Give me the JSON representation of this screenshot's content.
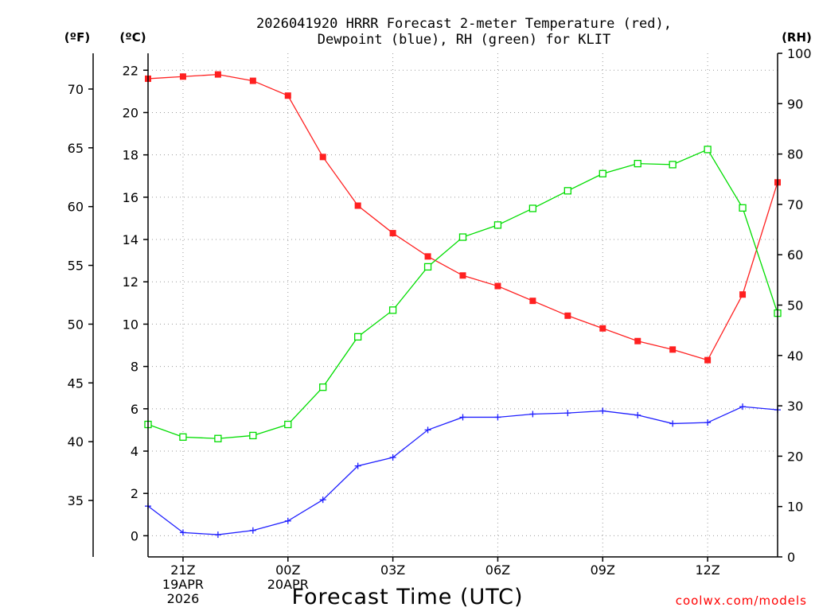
{
  "chart_data": {
    "type": "line",
    "title_line1": "2026041920 HRRR Forecast 2-meter Temperature (red),",
    "title_line2": "Dewpoint (blue), RH (green) for KLIT",
    "xlabel": "Forecast Time (UTC)",
    "credit": "coolwx.com/models",
    "units": {
      "f": "(ºF)",
      "c": "(ºC)",
      "rh": "(RH)"
    },
    "x_hours": [
      20,
      21,
      22,
      23,
      24,
      25,
      26,
      27,
      28,
      29,
      30,
      31,
      32,
      33,
      34,
      35,
      36,
      37,
      38
    ],
    "x_range": [
      20,
      38
    ],
    "x_ticks": [
      {
        "hour": 21,
        "lines": [
          "21Z",
          "19APR",
          "2026"
        ]
      },
      {
        "hour": 24,
        "lines": [
          "00Z",
          "20APR"
        ]
      },
      {
        "hour": 27,
        "lines": [
          "03Z"
        ]
      },
      {
        "hour": 30,
        "lines": [
          "06Z"
        ]
      },
      {
        "hour": 33,
        "lines": [
          "09Z"
        ]
      },
      {
        "hour": 36,
        "lines": [
          "12Z"
        ]
      }
    ],
    "c_axis": {
      "range": [
        -1,
        22.8
      ],
      "ticks": [
        0,
        2,
        4,
        6,
        8,
        10,
        12,
        14,
        16,
        18,
        20,
        22
      ]
    },
    "f_axis": {
      "ticks": [
        35,
        40,
        45,
        50,
        55,
        60,
        65,
        70
      ]
    },
    "rh_axis": {
      "range": [
        0,
        100
      ],
      "ticks": [
        0,
        10,
        20,
        30,
        40,
        50,
        60,
        70,
        80,
        90,
        100
      ]
    },
    "series": [
      {
        "name": "Temperature",
        "axis": "c",
        "color": "#ff2020",
        "marker": "filled-square",
        "values": [
          21.6,
          21.7,
          21.8,
          21.5,
          20.8,
          17.9,
          15.6,
          14.3,
          13.2,
          12.3,
          11.8,
          11.1,
          10.4,
          9.8,
          9.2,
          8.8,
          8.3,
          11.4,
          16.7
        ]
      },
      {
        "name": "Dewpoint",
        "axis": "c",
        "color": "#2020ff",
        "marker": "plus",
        "values": [
          1.4,
          0.15,
          0.05,
          0.25,
          0.7,
          1.7,
          3.3,
          3.7,
          5.0,
          5.6,
          5.6,
          5.75,
          5.8,
          5.9,
          5.7,
          5.3,
          5.35,
          6.1,
          5.95
        ]
      },
      {
        "name": "RH",
        "axis": "rh",
        "color": "#00dd00",
        "marker": "open-square",
        "values": [
          26.3,
          23.8,
          23.5,
          24.1,
          26.3,
          33.7,
          43.7,
          49.0,
          57.6,
          63.5,
          65.9,
          69.2,
          72.7,
          76.1,
          78.1,
          77.9,
          80.9,
          69.3,
          48.4
        ]
      }
    ]
  }
}
